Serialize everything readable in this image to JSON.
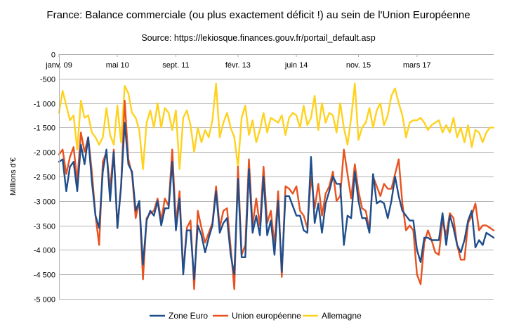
{
  "chart_data": {
    "type": "line",
    "title": "France: Balance commerciale (ou plus exactement déficit !) au sein de l'Union Européenne",
    "subtitle": "Source: https://lekiosque.finances.gouv.fr/portail_default.asp",
    "ylabel": "Millions d'€",
    "xlabel": "",
    "ylim": [
      -5000,
      0
    ],
    "yticks": [
      0,
      -500,
      -1000,
      -1500,
      -2000,
      -2500,
      -3000,
      -3500,
      -4000,
      -4500,
      -5000
    ],
    "ytick_labels": [
      "0",
      "-500",
      "-1 000",
      "-1 500",
      "-2 000",
      "-2 500",
      "-3 000",
      "-3 500",
      "-4 000",
      "-4 500",
      "-5 000"
    ],
    "x_start": "janv. 09",
    "x_count": 120,
    "xticks": [
      {
        "index": 0,
        "label": "janv. 09"
      },
      {
        "index": 16,
        "label": "mai 10"
      },
      {
        "index": 32,
        "label": "sept. 11"
      },
      {
        "index": 49,
        "label": "févr. 13"
      },
      {
        "index": 65,
        "label": "juin 14"
      },
      {
        "index": 82,
        "label": "nov. 15"
      },
      {
        "index": 98,
        "label": "mars 17"
      }
    ],
    "grid": true,
    "legend_position": "bottom",
    "series": [
      {
        "name": "Zone Euro",
        "color": "#1f4e8c",
        "values": [
          -2200,
          -2150,
          -2800,
          -2300,
          -2200,
          -2800,
          -1850,
          -2250,
          -1700,
          -2600,
          -3300,
          -3550,
          -2400,
          -1950,
          -3000,
          -2000,
          -3550,
          -2700,
          -1400,
          -2250,
          -2400,
          -3200,
          -3000,
          -4300,
          -3400,
          -3200,
          -3300,
          -3000,
          -3500,
          -3150,
          -3150,
          -2200,
          -3600,
          -2950,
          -4500,
          -3600,
          -3600,
          -4600,
          -3500,
          -3700,
          -4050,
          -3750,
          -3500,
          -2800,
          -3650,
          -3450,
          -3350,
          -4100,
          -4500,
          -2550,
          -4150,
          -4150,
          -2350,
          -3650,
          -3300,
          -3700,
          -2500,
          -3700,
          -3400,
          -4100,
          -3000,
          -4450,
          -2900,
          -2900,
          -3100,
          -3300,
          -3300,
          -3600,
          -3650,
          -2100,
          -3450,
          -3050,
          -3650,
          -3050,
          -2800,
          -2500,
          -2650,
          -2650,
          -3900,
          -3300,
          -3350,
          -2400,
          -3000,
          -3350,
          -3350,
          -3650,
          -2450,
          -3050,
          -3000,
          -3050,
          -3350,
          -3000,
          -2500,
          -2900,
          -3200,
          -3300,
          -3400,
          -3400,
          -4000,
          -4250,
          -3750,
          -3750,
          -3800,
          -3800,
          -3800,
          -3250,
          -3900,
          -3300,
          -3550,
          -3900,
          -4050,
          -3800,
          -3400,
          -3200,
          -3950,
          -3800,
          -3900,
          -3650,
          -3700,
          -3750
        ]
      },
      {
        "name": "Union européenne",
        "color": "#e8521f",
        "values": [
          -2050,
          -1950,
          -2450,
          -2100,
          -1900,
          -2600,
          -1600,
          -2000,
          -1700,
          -2400,
          -3300,
          -3900,
          -2200,
          -2000,
          -2750,
          -1950,
          -3550,
          -2700,
          -950,
          -2150,
          -2450,
          -3350,
          -3000,
          -4600,
          -3350,
          -3250,
          -3200,
          -2950,
          -3400,
          -2950,
          -3100,
          -1950,
          -3450,
          -2800,
          -4450,
          -3550,
          -3400,
          -4800,
          -3200,
          -3550,
          -3850,
          -3650,
          -3450,
          -2700,
          -3550,
          -3200,
          -3150,
          -3950,
          -4800,
          -2300,
          -4100,
          -3900,
          -2150,
          -3500,
          -2950,
          -3500,
          -2300,
          -3450,
          -3200,
          -3900,
          -2800,
          -4550,
          -2700,
          -2750,
          -2850,
          -2700,
          -3200,
          -3300,
          -3550,
          -2500,
          -3150,
          -2650,
          -3300,
          -2850,
          -2700,
          -2400,
          -3000,
          -2900,
          -1950,
          -2450,
          -2950,
          -2250,
          -2800,
          -3150,
          -3200,
          -3600,
          -2500,
          -2700,
          -2900,
          -2650,
          -2750,
          -2750,
          -2450,
          -2150,
          -3050,
          -3600,
          -3500,
          -3600,
          -4500,
          -4700,
          -3850,
          -3600,
          -3800,
          -4050,
          -4100,
          -3400,
          -3700,
          -3250,
          -3350,
          -3900,
          -4200,
          -4200,
          -3450,
          -3300,
          -3050,
          -3600,
          -3500,
          -3500,
          -3550,
          -3600
        ]
      },
      {
        "name": "Allemagne",
        "color": "#ffd21f",
        "values": [
          -1200,
          -750,
          -1050,
          -1350,
          -1250,
          -1950,
          -950,
          -1300,
          -1250,
          -1600,
          -1700,
          -1850,
          -1700,
          -1100,
          -1650,
          -1850,
          -1050,
          -1800,
          -650,
          -800,
          -1200,
          -1300,
          -1550,
          -2350,
          -1400,
          -1150,
          -1500,
          -1000,
          -1500,
          -1100,
          -1200,
          -1550,
          -1150,
          -2350,
          -1300,
          -1150,
          -1450,
          -2000,
          -1500,
          -1800,
          -1550,
          -1700,
          -1350,
          -600,
          -1700,
          -1400,
          -1200,
          -1500,
          -1700,
          -2300,
          -1300,
          -1050,
          -1650,
          -1350,
          -1800,
          -1550,
          -1200,
          -1600,
          -1300,
          -1350,
          -1400,
          -1250,
          -1650,
          -1300,
          -1200,
          -1250,
          -1500,
          -1050,
          -1450,
          -1300,
          -850,
          -1550,
          -1000,
          -1400,
          -1200,
          -1250,
          -1600,
          -1000,
          -1500,
          -1850,
          -1300,
          -600,
          -1750,
          -1500,
          -1400,
          -1100,
          -1500,
          -1150,
          -1000,
          -1450,
          -1250,
          -850,
          -700,
          -1000,
          -1250,
          -1700,
          -1400,
          -1350,
          -1350,
          -1300,
          -1400,
          -1550,
          -1450,
          -1400,
          -1350,
          -1600,
          -1450,
          -1600,
          -1300,
          -1700,
          -1500,
          -1800,
          -1450,
          -1900,
          -1550,
          -1600,
          -1800,
          -1600,
          -1500,
          -1500
        ]
      }
    ]
  }
}
